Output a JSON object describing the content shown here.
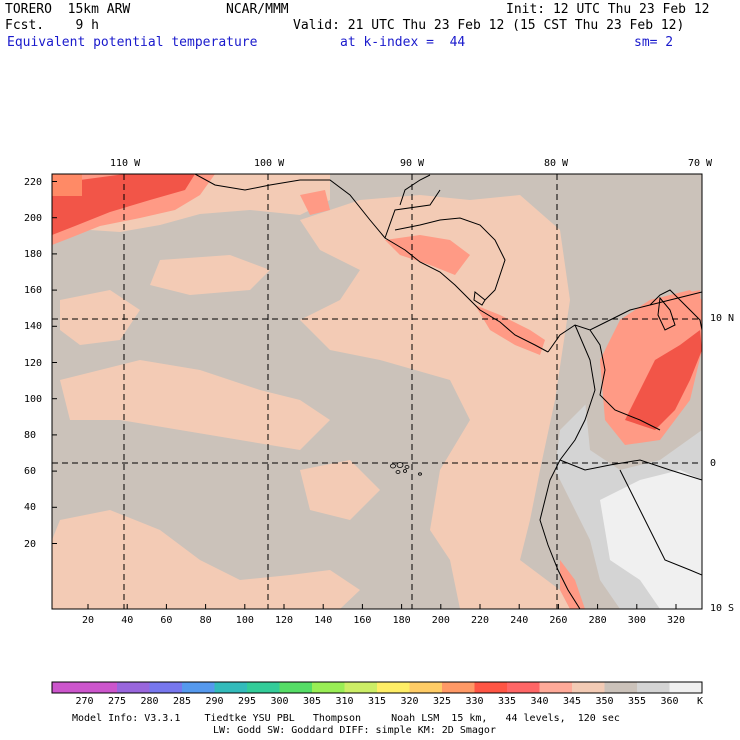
{
  "header": {
    "model": "TORERO  15km ARW",
    "center": "NCAR/MMM",
    "init": "Init: 12 UTC Thu 23 Feb 12",
    "fcst": "Fcst.    9 h",
    "valid": "Valid: 21 UTC Thu 23 Feb 12 (15 CST Thu 23 Feb 12)",
    "field": "Equivalent potential temperature",
    "level": "at k-index =  44",
    "smooth": "sm= 2"
  },
  "map": {
    "lon_labels": [
      "110 W",
      "100 W",
      "90 W",
      "80 W",
      "70 W"
    ],
    "lat_labels": [
      "10 N",
      "0",
      "10 S"
    ],
    "y_ticks": [
      "220",
      "200",
      "180",
      "160",
      "140",
      "120",
      "100",
      "80",
      "60",
      "40",
      "20"
    ],
    "x_ticks": [
      "20",
      "40",
      "60",
      "80",
      "100",
      "120",
      "140",
      "160",
      "180",
      "200",
      "220",
      "240",
      "260",
      "280",
      "300",
      "320"
    ]
  },
  "colorbar": {
    "labels": [
      "270",
      "275",
      "280",
      "285",
      "290",
      "295",
      "300",
      "305",
      "310",
      "315",
      "320",
      "325",
      "330",
      "335",
      "340",
      "345",
      "350",
      "355",
      "360"
    ],
    "unit": "K",
    "colors": [
      "#cc55cc",
      "#9966dd",
      "#7777ee",
      "#5599ee",
      "#33bbbb",
      "#33cc99",
      "#55dd66",
      "#99ee55",
      "#ccee66",
      "#ffee66",
      "#ffcc66",
      "#ff9966",
      "#ff5544",
      "#ff6666",
      "#ffaa99",
      "#f3cbb5",
      "#cbc2ba",
      "#d4d4d4",
      "#f0f0f0"
    ]
  },
  "footer": {
    "line1": "Model Info: V3.3.1    Tiedtke YSU PBL   Thompson     Noah LSM  15 km,   44 levels,  120 sec",
    "line2": "LW: Godd SW: Goddard DIFF: simple KM: 2D Smagor"
  },
  "colors": {
    "background_ocean": "#cbc2ba",
    "warm": "#f3cbb5",
    "hot": "#ff9a85",
    "hottest": "#f25548",
    "cold_land": "#d4d4d4",
    "snow": "#f0f0f0"
  }
}
